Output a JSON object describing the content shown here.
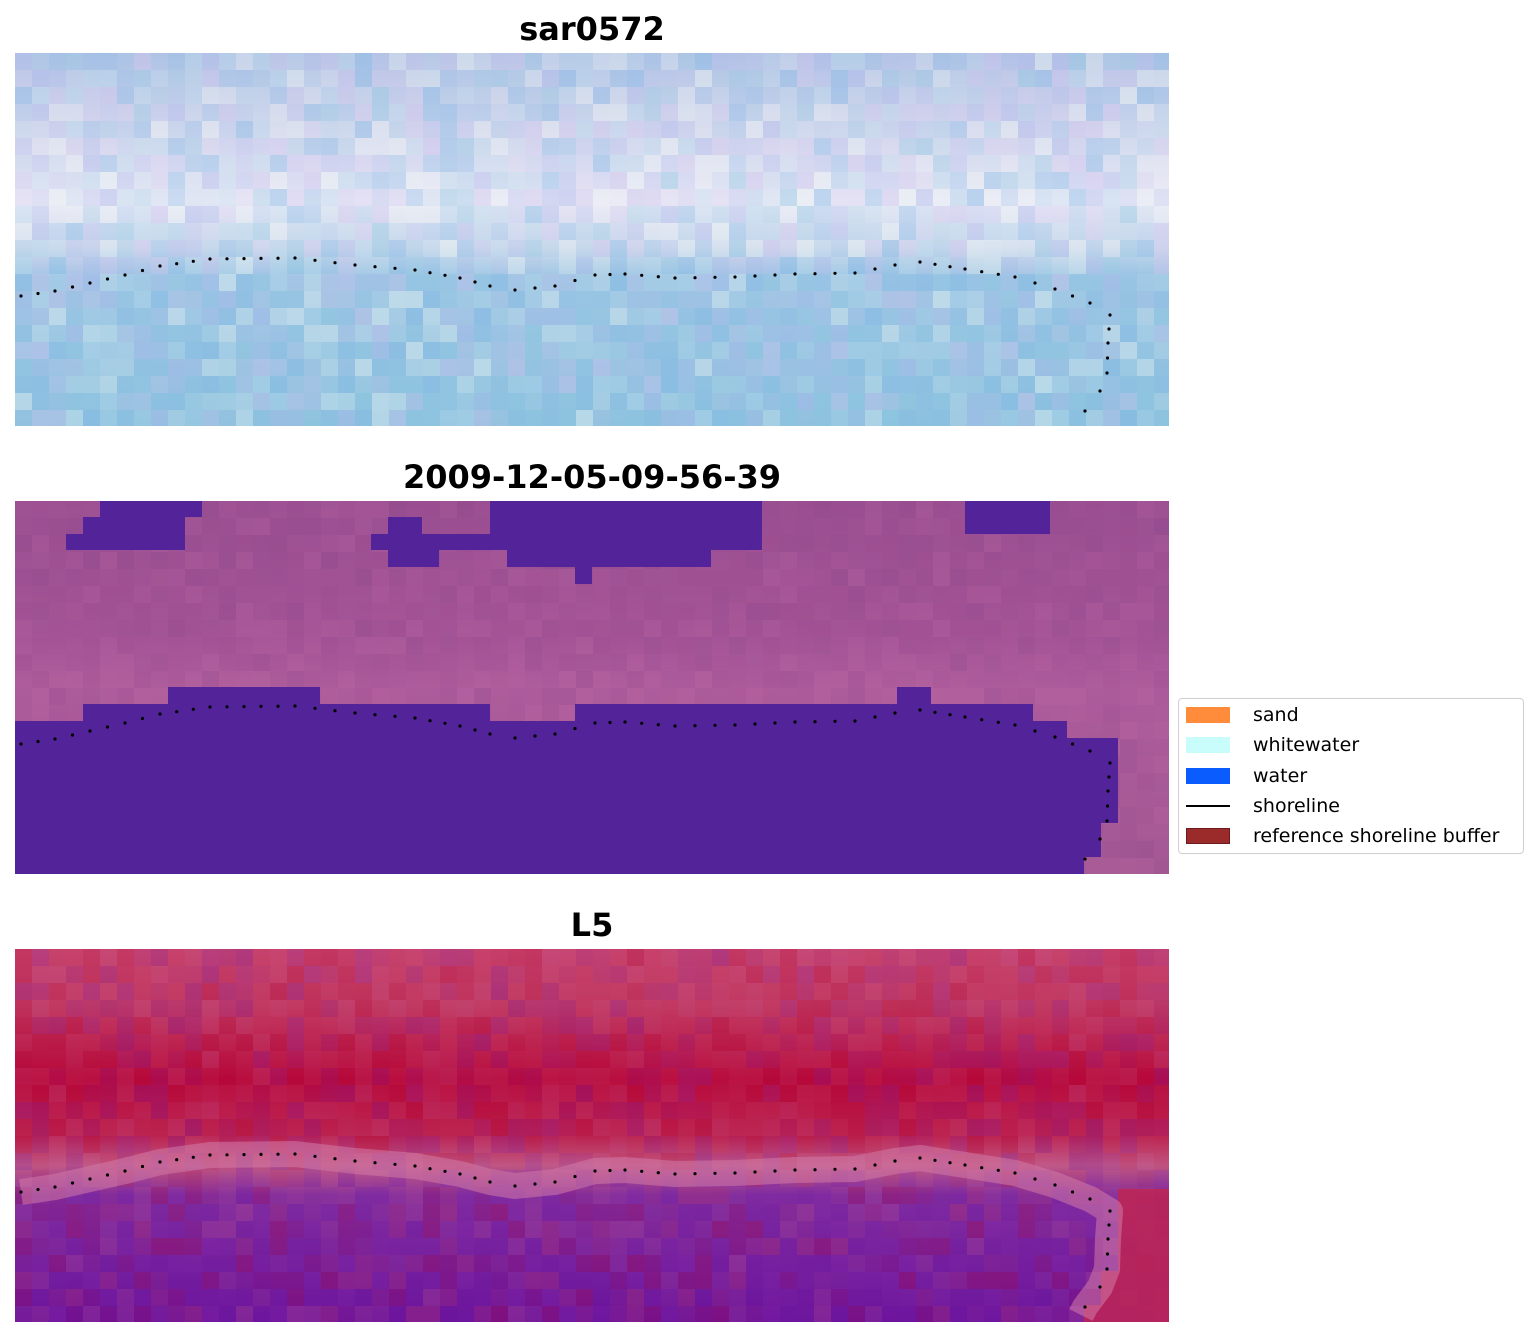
{
  "panels": [
    {
      "title": "sar0572",
      "image": "rgb-satellite-image"
    },
    {
      "title": "2009-12-05-09-56-39",
      "image": "classified-image"
    },
    {
      "title": "L5",
      "image": "mndwi-image"
    }
  ],
  "legend": {
    "items": [
      {
        "label": "sand",
        "color": "#ff8c3a",
        "kind": "patch"
      },
      {
        "label": "whitewater",
        "color": "#c8fdfc",
        "kind": "patch"
      },
      {
        "label": "water",
        "color": "#0a5cff",
        "kind": "patch"
      },
      {
        "label": "shoreline",
        "color": "#000000",
        "kind": "line"
      },
      {
        "label": "reference shoreline buffer",
        "color": "#9b2b2b",
        "kind": "patch"
      }
    ]
  },
  "colors": {
    "classified_water": "#53239a",
    "shoreline_dots": "#000000"
  }
}
